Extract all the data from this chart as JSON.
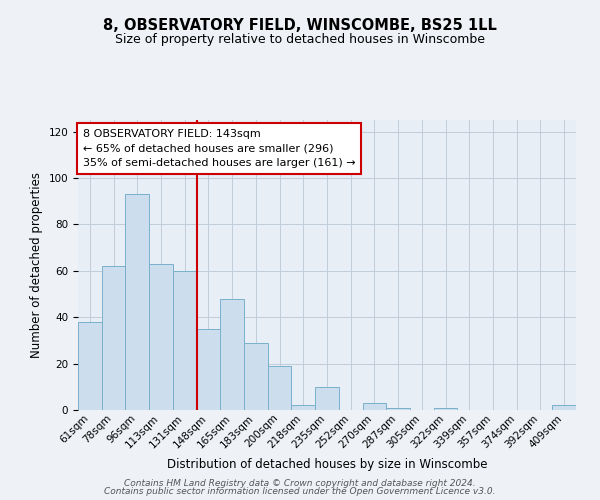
{
  "title1": "8, OBSERVATORY FIELD, WINSCOMBE, BS25 1LL",
  "title2": "Size of property relative to detached houses in Winscombe",
  "xlabel": "Distribution of detached houses by size in Winscombe",
  "ylabel": "Number of detached properties",
  "bar_labels": [
    "61sqm",
    "78sqm",
    "96sqm",
    "113sqm",
    "131sqm",
    "148sqm",
    "165sqm",
    "183sqm",
    "200sqm",
    "218sqm",
    "235sqm",
    "252sqm",
    "270sqm",
    "287sqm",
    "305sqm",
    "322sqm",
    "339sqm",
    "357sqm",
    "374sqm",
    "392sqm",
    "409sqm"
  ],
  "bar_values": [
    38,
    62,
    93,
    63,
    60,
    35,
    48,
    29,
    19,
    2,
    10,
    0,
    3,
    1,
    0,
    1,
    0,
    0,
    0,
    0,
    2
  ],
  "bar_color": "#ccdded",
  "bar_edge_color": "#7ab0cc",
  "vline_x": 5,
  "vline_color": "#cc0000",
  "ylim": [
    0,
    125
  ],
  "yticks": [
    0,
    20,
    40,
    60,
    80,
    100,
    120
  ],
  "ann_line1": "8 OBSERVATORY FIELD: 143sqm",
  "ann_line2": "← 65% of detached houses are smaller (296)",
  "ann_line3": "35% of semi-detached houses are larger (161) →",
  "footer1": "Contains HM Land Registry data © Crown copyright and database right 2024.",
  "footer2": "Contains public sector information licensed under the Open Government Licence v3.0.",
  "bg_color": "#eef2f7",
  "plot_bg_color": "#e8eef5",
  "grid_color": "#c0ccd8",
  "title1_fontsize": 10.5,
  "title2_fontsize": 9,
  "ylabel_fontsize": 8.5,
  "xlabel_fontsize": 8.5,
  "tick_fontsize": 7.5,
  "ann_fontsize": 8.0,
  "footer_fontsize": 6.5
}
